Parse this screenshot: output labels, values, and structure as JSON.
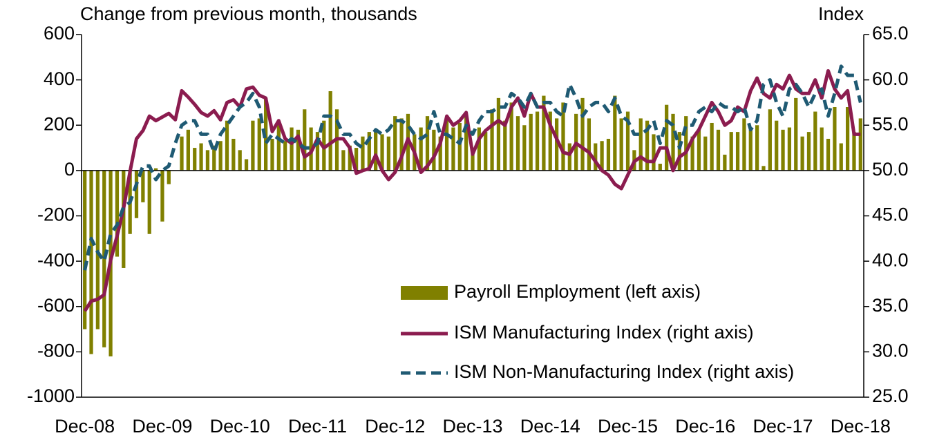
{
  "chart_data": {
    "type": "bar",
    "y_label": "Change from previous month, thousands",
    "y2_label": "Index",
    "categories": [
      "Dec-08",
      null,
      null,
      null,
      null,
      null,
      null,
      null,
      null,
      null,
      null,
      null,
      "Dec-09",
      null,
      null,
      null,
      null,
      null,
      null,
      null,
      null,
      null,
      null,
      null,
      "Dec-10",
      null,
      null,
      null,
      null,
      null,
      null,
      null,
      null,
      null,
      null,
      null,
      "Dec-11",
      null,
      null,
      null,
      null,
      null,
      null,
      null,
      null,
      null,
      null,
      null,
      "Dec-12",
      null,
      null,
      null,
      null,
      null,
      null,
      null,
      null,
      null,
      null,
      null,
      "Dec-13",
      null,
      null,
      null,
      null,
      null,
      null,
      null,
      null,
      null,
      null,
      null,
      "Dec-14",
      null,
      null,
      null,
      null,
      null,
      null,
      null,
      null,
      null,
      null,
      null,
      "Dec-15",
      null,
      null,
      null,
      null,
      null,
      null,
      null,
      null,
      null,
      null,
      null,
      "Dec-16",
      null,
      null,
      null,
      null,
      null,
      null,
      null,
      null,
      null,
      null,
      null,
      "Dec-17",
      null,
      null,
      null,
      null,
      null,
      null,
      null,
      null,
      null,
      null,
      null,
      "Dec-18"
    ],
    "series": [
      {
        "name": "Payroll Employment (left axis)",
        "type": "bar",
        "color": "#808000",
        "values": [
          -700,
          -810,
          -700,
          -780,
          -820,
          -380,
          -430,
          -280,
          -210,
          -140,
          -280,
          10,
          -225,
          -60,
          0,
          150,
          180,
          100,
          120,
          90,
          110,
          130,
          220,
          140,
          90,
          50,
          220,
          230,
          320,
          140,
          220,
          130,
          190,
          180,
          270,
          190,
          170,
          220,
          350,
          270,
          90,
          110,
          100,
          150,
          170,
          170,
          160,
          150,
          240,
          230,
          250,
          160,
          190,
          240,
          180,
          150,
          230,
          190,
          210,
          250,
          100,
          190,
          170,
          270,
          320,
          220,
          300,
          240,
          200,
          250,
          260,
          330,
          260,
          230,
          300,
          120,
          250,
          320,
          230,
          120,
          130,
          140,
          330,
          230,
          260,
          90,
          230,
          220,
          160,
          30,
          290,
          250,
          170,
          240,
          150,
          180,
          150,
          210,
          180,
          70,
          170,
          170,
          230,
          180,
          200,
          20,
          270,
          220,
          180,
          190,
          320,
          150,
          170,
          260,
          190,
          140,
          280,
          120,
          280,
          170,
          230
        ]
      },
      {
        "name": "ISM Manufacturing Index (right axis)",
        "type": "line",
        "axis": "y2",
        "color": "#8b1c4f",
        "dashed": false,
        "values": [
          34.5,
          35.6,
          35.8,
          36.3,
          40.1,
          42.8,
          45.8,
          49.9,
          53.5,
          54.4,
          56.0,
          55.5,
          55.9,
          56.3,
          55.6,
          58.8,
          58.1,
          57.3,
          56.4,
          56.0,
          56.6,
          55.6,
          57.5,
          57.8,
          57.0,
          59.0,
          59.2,
          58.3,
          58.0,
          54.3,
          55.5,
          53.5,
          53.0,
          53.8,
          51.5,
          52.0,
          53.5,
          52.5,
          53.0,
          53.5,
          53.5,
          52.5,
          49.7,
          50.0,
          50.2,
          51.7,
          50.0,
          49.0,
          49.8,
          51.5,
          53.5,
          52.0,
          49.8,
          50.5,
          51.5,
          53.0,
          56.0,
          55.0,
          55.5,
          56.4,
          51.8,
          53.5,
          54.4,
          55.0,
          55.5,
          55.0,
          57.0,
          58.0,
          56.0,
          58.5,
          57.0,
          57.0,
          55.0,
          53.5,
          52.0,
          51.8,
          53.0,
          52.5,
          52.0,
          51.0,
          50.0,
          49.5,
          48.5,
          48.0,
          49.5,
          51.0,
          51.5,
          51.0,
          51.0,
          52.5,
          52.5,
          50.0,
          51.5,
          52.0,
          53.5,
          54.5,
          56.0,
          57.5,
          56.5,
          55.0,
          55.5,
          57.0,
          56.5,
          58.8,
          60.2,
          58.5,
          58.0,
          59.5,
          59.0,
          60.5,
          59.0,
          58.5,
          58.5,
          60.0,
          58.0,
          61.0,
          59.0,
          58.0,
          58.8,
          54.0,
          54.0
        ]
      },
      {
        "name": "ISM Non-Manufacturing Index (right axis)",
        "type": "line",
        "axis": "y2",
        "color": "#1f5a73",
        "dashed": true,
        "values": [
          39.0,
          42.5,
          41.0,
          40.0,
          43.0,
          44.0,
          46.0,
          46.5,
          48.5,
          50.5,
          50.5,
          49.0,
          50.0,
          50.5,
          53.0,
          55.0,
          55.5,
          55.5,
          54.0,
          54.0,
          52.0,
          54.0,
          55.0,
          56.0,
          57.0,
          57.5,
          58.5,
          57.0,
          53.0,
          54.0,
          53.5,
          53.0,
          53.5,
          53.0,
          52.5,
          52.5,
          53.0,
          56.0,
          56.0,
          55.5,
          54.0,
          54.0,
          53.0,
          52.5,
          53.5,
          54.5,
          54.0,
          54.5,
          55.5,
          55.5,
          55.0,
          54.0,
          53.5,
          54.0,
          56.5,
          54.0,
          54.0,
          53.5,
          53.0,
          55.0,
          54.0,
          55.5,
          56.5,
          56.5,
          57.0,
          57.0,
          58.5,
          58.0,
          57.0,
          58.5,
          57.0,
          57.5,
          57.5,
          56.5,
          56.0,
          59.5,
          58.0,
          56.0,
          57.0,
          57.5,
          57.5,
          56.5,
          58.0,
          56.0,
          55.5,
          54.0,
          54.0,
          54.5,
          55.5,
          53.0,
          55.5,
          55.0,
          52.5,
          55.0,
          55.0,
          56.5,
          57.0,
          56.5,
          57.5,
          57.0,
          57.0,
          56.5,
          57.0,
          54.5,
          55.5,
          59.5,
          60.0,
          57.5,
          56.0,
          59.0,
          59.5,
          58.5,
          57.0,
          58.5,
          59.0,
          56.0,
          58.5,
          61.5,
          60.5,
          60.5,
          57.5
        ]
      }
    ],
    "ylim": [
      -1000,
      600
    ],
    "yticks": [
      -1000,
      -800,
      -600,
      -400,
      -200,
      0,
      200,
      400,
      600
    ],
    "y2lim": [
      25,
      65
    ],
    "y2ticks": [
      {
        "value": 25,
        "label": "25.0"
      },
      {
        "value": 30,
        "label": "30.0"
      },
      {
        "value": 35,
        "label": "35.0"
      },
      {
        "value": 40,
        "label": "40.0"
      },
      {
        "value": 45,
        "label": "45.0"
      },
      {
        "value": 50,
        "label": "50.0"
      },
      {
        "value": 55,
        "label": "55.0"
      },
      {
        "value": 60,
        "label": "60.0"
      },
      {
        "value": 65,
        "label": "65.0"
      }
    ],
    "grid": false,
    "legend": "lower-right"
  }
}
